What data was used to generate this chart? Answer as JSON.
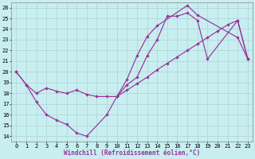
{
  "xlabel": "Windchill (Refroidissement éolien,°C)",
  "background_color": "#c8eef0",
  "grid_color": "#aad4d8",
  "line_color": "#993399",
  "xlim": [
    -0.5,
    23.5
  ],
  "ylim": [
    13.5,
    26.5
  ],
  "line1_x": [
    0,
    1,
    2,
    3,
    4,
    5,
    6,
    7,
    9,
    10,
    11,
    12,
    13,
    14,
    17,
    18,
    22,
    23
  ],
  "line1_y": [
    20,
    18.8,
    17.2,
    16,
    15.5,
    15.1,
    14.3,
    14,
    16,
    17.7,
    19.3,
    21.5,
    23.3,
    24.3,
    26.2,
    25.3,
    23.2,
    21.2
  ],
  "line2_x": [
    0,
    1,
    2,
    3,
    4,
    5,
    6,
    7,
    8,
    9,
    10,
    11,
    12,
    13,
    14,
    15,
    16,
    17,
    18,
    19,
    22,
    23
  ],
  "line2_y": [
    20,
    18.8,
    18.0,
    18.5,
    18.2,
    18.0,
    18.3,
    17.9,
    17.7,
    17.7,
    17.7,
    18.8,
    19.5,
    21.5,
    23.0,
    25.2,
    25.2,
    25.5,
    24.8,
    21.2,
    24.8,
    21.2
  ],
  "line3_x": [
    10,
    11,
    12,
    13,
    14,
    15,
    16,
    17,
    18,
    19,
    20,
    21,
    22,
    23
  ],
  "line3_y": [
    17.7,
    18.3,
    18.9,
    19.5,
    20.2,
    20.8,
    21.4,
    22.0,
    22.6,
    23.2,
    23.8,
    24.4,
    24.8,
    21.2
  ],
  "xtick_fontsize": 5,
  "ytick_fontsize": 5,
  "xlabel_fontsize": 5.5
}
